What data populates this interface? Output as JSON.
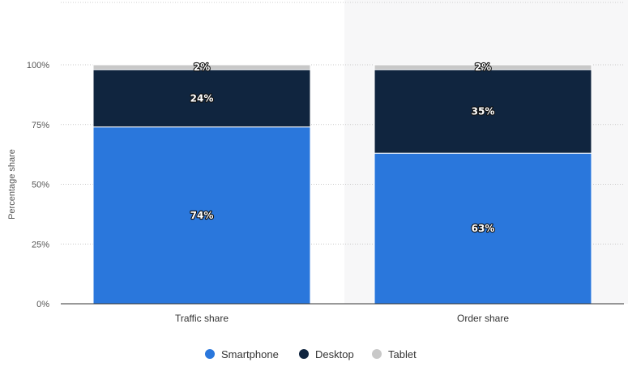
{
  "chart_data": {
    "type": "bar",
    "stacked": true,
    "categories": [
      "Traffic share",
      "Order share"
    ],
    "series": [
      {
        "name": "Smartphone",
        "values": [
          74,
          63
        ],
        "color": "#2a77dc",
        "labels": [
          "74%",
          "63%"
        ]
      },
      {
        "name": "Desktop",
        "values": [
          24,
          35
        ],
        "color": "#10253f",
        "labels": [
          "24%",
          "35%"
        ]
      },
      {
        "name": "Tablet",
        "values": [
          2,
          2
        ],
        "color": "#c8c8c8",
        "labels": [
          "2%",
          "2%"
        ]
      }
    ],
    "ylabel": "Percentage share",
    "xlabel": "",
    "ylim": [
      0,
      100
    ],
    "yticks": [
      0,
      25,
      50,
      75,
      100
    ],
    "ytick_labels": [
      "0%",
      "25%",
      "50%",
      "75%",
      "100%"
    ],
    "grid": true,
    "legend_position": "bottom-center"
  }
}
